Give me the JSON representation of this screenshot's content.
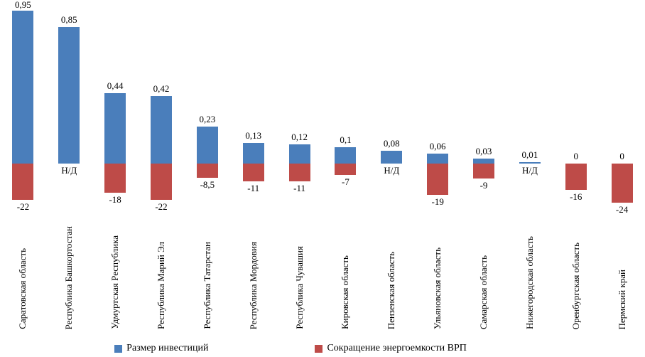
{
  "chart_data": {
    "type": "bar",
    "title": "",
    "xlabel": "",
    "ylabel": "",
    "grid": false,
    "legend_position": "bottom",
    "categories": [
      "Саратовская область",
      "Республика Башкортостан",
      "Удмуртская Республика",
      "Республика Марий Эл",
      "Республика Татарстан",
      "Республика Мордовия",
      "Республика Чувашия",
      "Кировская область",
      "Пензенская область",
      "Ульяновская область",
      "Самарская область",
      "Нижегородская область",
      "Оренбургская область",
      "Пермский край"
    ],
    "series": [
      {
        "name": "Размер инвестиций",
        "color": "#4a7ebb",
        "axis_range": [
          0,
          1
        ],
        "values": [
          0.95,
          0.85,
          0.44,
          0.42,
          0.23,
          0.13,
          0.12,
          0.1,
          0.08,
          0.06,
          0.03,
          0.01,
          0,
          0
        ],
        "labels": [
          "0,95",
          "0,85",
          "0,44",
          "0,42",
          "0,23",
          "0,13",
          "0,12",
          "0,1",
          "0,08",
          "0,06",
          "0,03",
          "0,01",
          "0",
          "0"
        ]
      },
      {
        "name": "Сокращение энергоемкости ВРП",
        "color": "#be4b48",
        "axis_range": [
          -30,
          0
        ],
        "no_data_text": "Н/Д",
        "values": [
          -22,
          null,
          -18,
          -22,
          -8.5,
          -11,
          -11,
          -7,
          null,
          -19,
          -9,
          null,
          -16,
          -24
        ],
        "labels": [
          "-22",
          "Н/Д",
          "-18",
          "-22",
          "-8,5",
          "-11",
          "-11",
          "-7",
          "Н/Д",
          "-19",
          "-9",
          "Н/Д",
          "-16",
          "-24"
        ]
      }
    ]
  },
  "legend": {
    "items": [
      {
        "label": "Размер инвестиций",
        "color": "#4a7ebb"
      },
      {
        "label": "Сокращение энергоемкости ВРП",
        "color": "#be4b48"
      }
    ]
  }
}
